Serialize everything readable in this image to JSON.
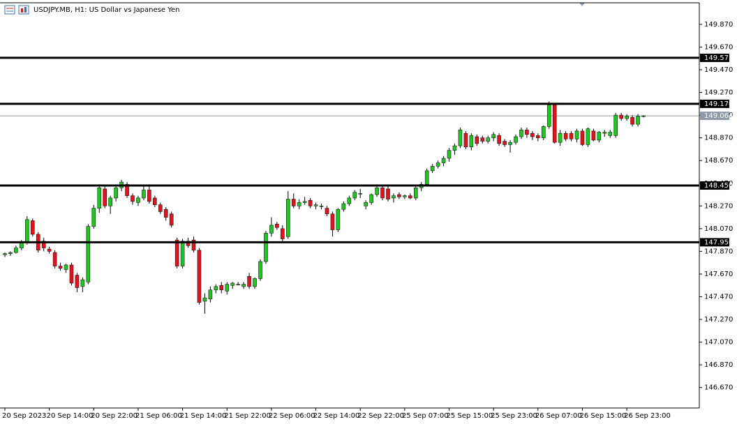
{
  "chart_data": {
    "type": "candlestick",
    "title": "USDJPY.MB, H1:  US Dollar vs Japanese Yen",
    "categories": [
      "20 Sep 2023",
      null,
      null,
      null,
      null,
      null,
      null,
      null,
      "20 Sep 14:00",
      null,
      null,
      null,
      null,
      null,
      null,
      null,
      "20 Sep 22:00",
      null,
      null,
      null,
      null,
      null,
      null,
      null,
      "21 Sep 06:00",
      null,
      null,
      null,
      null,
      null,
      null,
      null,
      "21 Sep 14:00",
      null,
      null,
      null,
      null,
      null,
      null,
      null,
      "21 Sep 22:00",
      null,
      null,
      null,
      null,
      null,
      null,
      null,
      "22 Sep 06:00",
      null,
      null,
      null,
      null,
      null,
      null,
      null,
      "22 Sep 14:00",
      null,
      null,
      null,
      null,
      null,
      null,
      null,
      "22 Sep 22:00",
      null,
      null,
      null,
      null,
      null,
      null,
      null,
      "25 Sep 07:00",
      null,
      null,
      null,
      null,
      null,
      null,
      null,
      "25 Sep 15:00",
      null,
      null,
      null,
      null,
      null,
      null,
      null,
      "25 Sep 23:00",
      null,
      null,
      null,
      null,
      null,
      null,
      null,
      "26 Sep 07:00",
      null,
      null,
      null,
      null,
      null,
      null,
      null,
      "26 Sep 15:00",
      null,
      null,
      null,
      null,
      null,
      null,
      null,
      "26 Sep 23:00",
      null,
      null,
      null
    ],
    "open": [
      147.84,
      147.85,
      147.86,
      147.9,
      147.95,
      148.14,
      148.02,
      147.96,
      147.89,
      147.86,
      147.74,
      147.71,
      147.75,
      147.66,
      147.56,
      147.6,
      148.09,
      148.25,
      148.42,
      148.27,
      148.34,
      148.43,
      148.46,
      148.36,
      148.3,
      148.34,
      148.41,
      148.34,
      148.28,
      148.24,
      148.2,
      147.97,
      147.74,
      147.96,
      147.97,
      147.88,
      147.43,
      147.45,
      147.53,
      147.57,
      147.52,
      147.57,
      147.58,
      147.56,
      147.65,
      147.56,
      147.63,
      147.78,
      148.03,
      148.11,
      148.07,
      148.0,
      148.33,
      148.27,
      148.3,
      148.32,
      148.27,
      148.27,
      148.25,
      148.2,
      148.06,
      148.24,
      148.29,
      148.34,
      148.38,
      148.27,
      148.3,
      148.37,
      148.43,
      148.42,
      148.34,
      148.37,
      148.35,
      148.36,
      148.34,
      148.43,
      148.46,
      148.58,
      148.62,
      148.65,
      148.69,
      148.76,
      148.8,
      148.91,
      148.79,
      148.88,
      148.87,
      148.84,
      148.87,
      148.89,
      148.84,
      148.81,
      148.83,
      148.88,
      148.94,
      148.91,
      148.89,
      148.87,
      148.97,
      149.16,
      148.83,
      148.91,
      148.91,
      148.86,
      148.93,
      148.81,
      148.93,
      148.85,
      148.91,
      148.89,
      148.89,
      149.07,
      149.04,
      149.05,
      148.99,
      149.06
    ],
    "high": [
      147.86,
      147.87,
      147.92,
      147.97,
      148.18,
      148.16,
      148.04,
      147.99,
      147.91,
      147.88,
      147.77,
      147.76,
      147.77,
      147.68,
      147.64,
      148.11,
      148.28,
      148.46,
      148.44,
      148.36,
      148.45,
      148.5,
      148.48,
      148.38,
      148.36,
      148.45,
      148.46,
      148.36,
      148.3,
      148.26,
      148.22,
      147.99,
      147.98,
      147.99,
      148.0,
      147.9,
      147.5,
      147.56,
      147.58,
      147.6,
      147.6,
      147.6,
      147.6,
      147.6,
      147.68,
      147.64,
      147.8,
      148.05,
      148.17,
      148.13,
      148.1,
      148.4,
      148.38,
      148.33,
      148.35,
      148.34,
      148.3,
      148.29,
      148.27,
      148.22,
      148.25,
      148.31,
      148.36,
      148.41,
      148.42,
      148.32,
      148.38,
      148.46,
      148.45,
      148.45,
      148.38,
      148.39,
      148.37,
      148.38,
      148.45,
      148.48,
      148.6,
      148.64,
      148.67,
      148.71,
      148.78,
      148.82,
      148.96,
      148.93,
      148.91,
      148.9,
      148.89,
      148.89,
      148.92,
      148.91,
      148.86,
      148.85,
      148.9,
      148.96,
      148.96,
      148.93,
      148.91,
      148.98,
      149.19,
      149.17,
      148.94,
      148.93,
      148.93,
      148.95,
      148.95,
      148.96,
      148.95,
      148.93,
      148.94,
      148.94,
      149.09,
      149.09,
      149.08,
      149.07,
      149.08,
      149.07
    ],
    "low": [
      147.82,
      147.83,
      147.85,
      147.88,
      147.93,
      148.0,
      147.86,
      147.87,
      147.85,
      147.72,
      147.7,
      147.68,
      147.57,
      147.51,
      147.51,
      147.58,
      148.07,
      148.21,
      148.25,
      148.2,
      148.31,
      148.4,
      148.34,
      148.28,
      148.27,
      148.32,
      148.29,
      148.26,
      148.2,
      148.14,
      148.08,
      147.72,
      147.72,
      147.9,
      147.86,
      147.4,
      147.32,
      147.42,
      147.5,
      147.5,
      147.49,
      147.54,
      147.57,
      147.54,
      147.54,
      147.54,
      147.61,
      147.76,
      148.0,
      148.06,
      147.96,
      147.98,
      148.25,
      148.24,
      148.28,
      148.25,
      148.24,
      148.24,
      148.18,
      148.0,
      148.04,
      148.22,
      148.27,
      148.32,
      148.34,
      148.24,
      148.28,
      148.35,
      148.32,
      148.31,
      148.3,
      148.33,
      148.33,
      148.33,
      148.32,
      148.4,
      148.44,
      148.56,
      148.6,
      148.62,
      148.66,
      148.72,
      148.78,
      148.77,
      148.76,
      148.8,
      148.82,
      148.82,
      148.84,
      148.8,
      148.79,
      148.74,
      148.81,
      148.86,
      148.87,
      148.85,
      148.84,
      148.85,
      148.95,
      148.82,
      148.8,
      148.84,
      148.84,
      148.83,
      148.8,
      148.79,
      148.84,
      148.83,
      148.88,
      148.87,
      148.87,
      149.02,
      149.02,
      148.97,
      148.97,
      149.05
    ],
    "close": [
      147.85,
      147.86,
      147.9,
      147.95,
      148.15,
      148.02,
      147.88,
      147.9,
      147.87,
      147.74,
      147.72,
      147.75,
      147.59,
      147.55,
      147.62,
      148.09,
      148.25,
      148.43,
      148.27,
      148.34,
      148.43,
      148.48,
      148.36,
      148.31,
      148.34,
      148.41,
      148.31,
      148.28,
      148.22,
      148.17,
      148.1,
      147.74,
      147.96,
      147.92,
      147.88,
      147.42,
      147.46,
      147.53,
      147.56,
      147.53,
      147.58,
      147.59,
      147.58,
      147.58,
      147.56,
      147.63,
      147.78,
      148.03,
      148.1,
      148.08,
      147.98,
      148.33,
      148.27,
      148.3,
      148.31,
      148.27,
      148.28,
      148.27,
      148.2,
      148.06,
      148.24,
      148.29,
      148.34,
      148.39,
      148.38,
      148.3,
      148.37,
      148.43,
      148.34,
      148.33,
      148.36,
      148.35,
      148.36,
      148.34,
      148.43,
      148.46,
      148.58,
      148.62,
      148.65,
      148.69,
      148.76,
      148.8,
      148.94,
      148.79,
      148.89,
      148.82,
      148.84,
      148.87,
      148.9,
      148.82,
      148.81,
      148.83,
      148.88,
      148.94,
      148.9,
      148.88,
      148.87,
      148.97,
      149.16,
      148.83,
      148.91,
      148.86,
      148.86,
      148.93,
      148.81,
      148.95,
      148.85,
      148.92,
      148.92,
      148.92,
      149.07,
      149.04,
      149.06,
      148.99,
      149.06,
      149.064
    ],
    "up_color": "#1ec81e",
    "down_color": "#e8101a",
    "wick_color": "#000000",
    "ylim": [
      146.49,
      150.06
    ],
    "yticks": [
      {
        "value": 149.87,
        "label": "149.870"
      },
      {
        "value": 149.67,
        "label": "149.670"
      },
      {
        "value": 149.47,
        "label": "149.470"
      },
      {
        "value": 149.27,
        "label": "149.270"
      },
      {
        "value": 149.07,
        "label": "149.070"
      },
      {
        "value": 148.87,
        "label": "148.870"
      },
      {
        "value": 148.67,
        "label": "148.670"
      },
      {
        "value": 148.47,
        "label": "148.470"
      },
      {
        "value": 148.27,
        "label": "148.270"
      },
      {
        "value": 148.07,
        "label": "148.070"
      },
      {
        "value": 147.87,
        "label": "147.870"
      },
      {
        "value": 147.67,
        "label": "147.670"
      },
      {
        "value": 147.47,
        "label": "147.470"
      },
      {
        "value": 147.27,
        "label": "147.270"
      },
      {
        "value": 147.07,
        "label": "147.070"
      },
      {
        "value": 146.87,
        "label": "146.870"
      },
      {
        "value": 146.67,
        "label": "146.670"
      }
    ],
    "levels": [
      {
        "value": 149.575,
        "label": "149.575"
      },
      {
        "value": 149.17,
        "label": "149.170"
      },
      {
        "value": 148.45,
        "label": "148.450"
      },
      {
        "value": 147.95,
        "label": "147.950"
      }
    ],
    "level_color": "#000000",
    "last_price": {
      "value": 149.064,
      "label": "149.064"
    },
    "last_price_color": "#8d9ba8"
  }
}
